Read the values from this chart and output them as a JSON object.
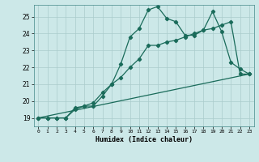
{
  "xlabel": "Humidex (Indice chaleur)",
  "bg_color": "#cce8e8",
  "grid_color": "#aacccc",
  "line_color": "#1a6b5a",
  "xlim": [
    -0.5,
    23.5
  ],
  "ylim": [
    18.5,
    25.7
  ],
  "xticks": [
    0,
    1,
    2,
    3,
    4,
    5,
    6,
    7,
    8,
    9,
    10,
    11,
    12,
    13,
    14,
    15,
    16,
    17,
    18,
    19,
    20,
    21,
    22,
    23
  ],
  "yticks": [
    19,
    20,
    21,
    22,
    23,
    24,
    25
  ],
  "line1_x": [
    0,
    1,
    2,
    3,
    4,
    5,
    6,
    7,
    8,
    9,
    10,
    11,
    12,
    13,
    14,
    15,
    16,
    17,
    18,
    19,
    20,
    21,
    22,
    23
  ],
  "line1_y": [
    19.0,
    19.0,
    19.0,
    19.0,
    19.5,
    19.7,
    19.7,
    20.3,
    21.0,
    22.2,
    23.8,
    24.3,
    25.4,
    25.6,
    24.9,
    24.7,
    23.9,
    23.9,
    24.2,
    25.3,
    24.1,
    22.3,
    21.9,
    21.6
  ],
  "line2_x": [
    0,
    1,
    2,
    3,
    4,
    5,
    6,
    7,
    8,
    9,
    10,
    11,
    12,
    13,
    14,
    15,
    16,
    17,
    18,
    19,
    20,
    21,
    22,
    23
  ],
  "line2_y": [
    19.0,
    19.0,
    19.0,
    19.0,
    19.6,
    19.7,
    19.9,
    20.5,
    21.0,
    21.4,
    22.0,
    22.5,
    23.3,
    23.3,
    23.5,
    23.6,
    23.8,
    24.0,
    24.2,
    24.3,
    24.5,
    24.7,
    21.6,
    21.6
  ],
  "line3_x": [
    0,
    23
  ],
  "line3_y": [
    19.0,
    21.6
  ],
  "marker": "D",
  "markersize": 2.2,
  "linewidth": 0.9
}
